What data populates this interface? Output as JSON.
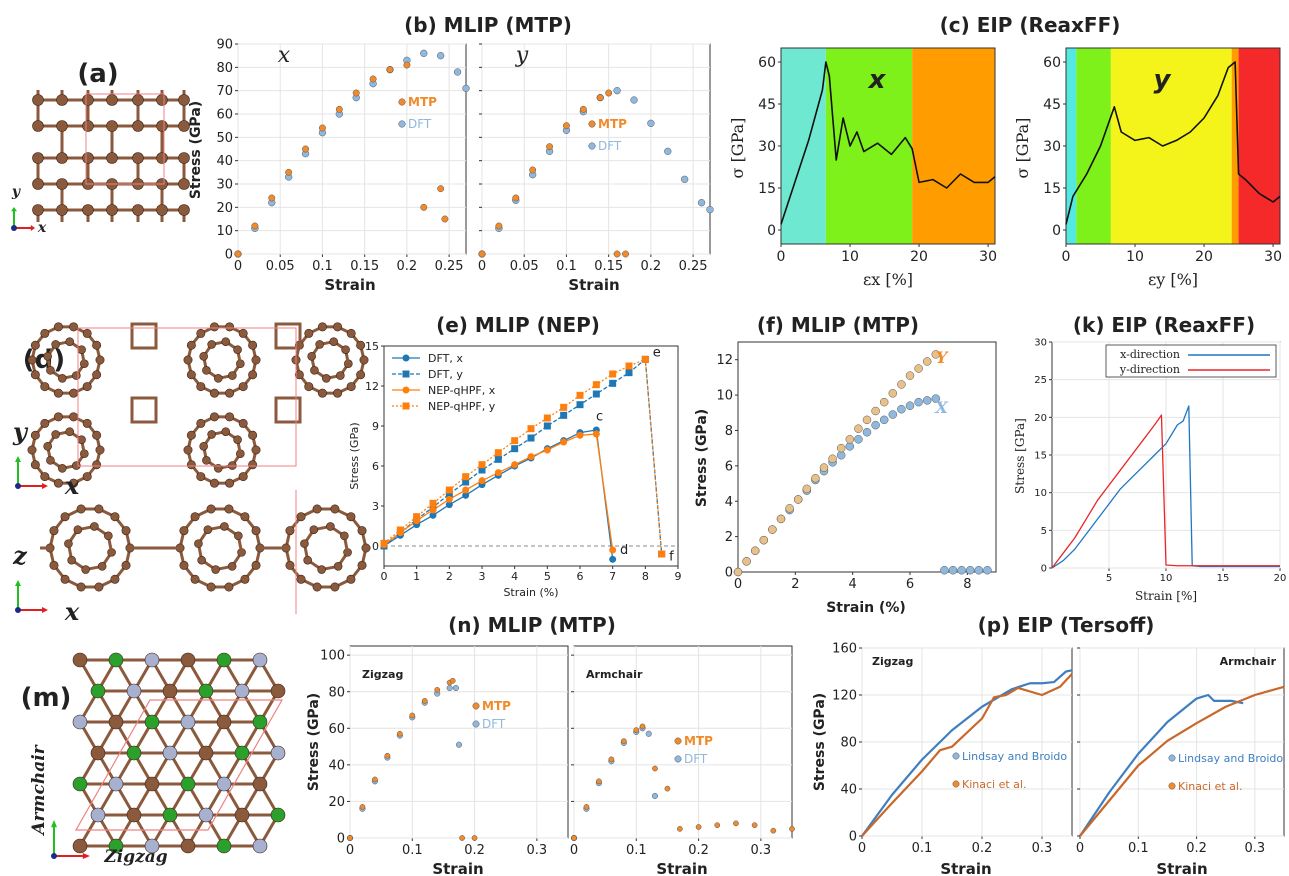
{
  "panels": {
    "a": {
      "label": "(a)",
      "axes": {
        "x": "x",
        "y": "y"
      }
    },
    "b": {
      "label": "(b) MLIP (MTP)",
      "left_title": "x",
      "right_title": "y",
      "ylabel": "Stress (GPa)",
      "xlabel": "Strain",
      "legend": [
        "MTP",
        "DFT"
      ]
    },
    "c": {
      "label": "(c) EIP (ReaxFF)",
      "left_title": "x",
      "right_title": "y",
      "ylabel": "σ [GPa]",
      "xlabel_left": "εx [%]",
      "xlabel_right": "εy [%]"
    },
    "d": {
      "label": "(d)",
      "axes_top": {
        "x": "x",
        "y": "y"
      },
      "axes_bottom": {
        "x": "x",
        "y": "z"
      }
    },
    "e": {
      "label": "(e) MLIP (NEP)",
      "xlabel": "Strain (%)",
      "ylabel": "Stress (GPa)",
      "legend": [
        "DFT, x",
        "DFT, y",
        "NEP-qHPF, x",
        "NEP-qHPF, y"
      ],
      "point_labels": [
        "c",
        "d",
        "e",
        "f"
      ]
    },
    "f": {
      "label": "(f) MLIP (MTP)",
      "xlabel": "Strain (%)",
      "ylabel": "Stress (GPa)",
      "series_labels": [
        "Y",
        "X"
      ]
    },
    "k": {
      "label": "(k) EIP (ReaxFF)",
      "xlabel": "Strain [%]",
      "ylabel": "Stress [GPa]",
      "legend": [
        "x-direction",
        "y-direction"
      ]
    },
    "m": {
      "label": "(m)",
      "axes": {
        "x": "Zigzag",
        "y": "Armchair"
      }
    },
    "n": {
      "label": "(n) MLIP (MTP)",
      "left_title": "Zigzag",
      "right_title": "Armchair",
      "ylabel": "Stress (GPa)",
      "xlabel": "Strain",
      "legend": [
        "MTP",
        "DFT"
      ]
    },
    "p": {
      "label": "(p) EIP (Tersoff)",
      "left_title": "Zigzag",
      "right_title": "Armchair",
      "ylabel": "Stress (GPa)",
      "xlabel": "Strain",
      "legend": [
        "Lindsay and Broido",
        "Kinaci et al."
      ]
    }
  },
  "colors": {
    "mtp": "#f08a2a",
    "dft": "#8fb8df",
    "nep_blue": "#1f77b4",
    "nep_orange": "#ff7f0e",
    "reax_blue": "#1f77c4",
    "reax_red": "#e8262a",
    "atom_c": "#8b5a3c",
    "atom_b": "#2ca02c",
    "atom_n": "#a8b0d0",
    "cell": "#f08080"
  },
  "chart_data": [
    {
      "id": "b-x",
      "type": "scatter",
      "xlim": [
        0,
        0.27
      ],
      "ylim": [
        0,
        90
      ],
      "series": [
        {
          "name": "MTP",
          "x": [
            0,
            0.02,
            0.04,
            0.06,
            0.08,
            0.1,
            0.12,
            0.14,
            0.16,
            0.18,
            0.2,
            0.22,
            0.24,
            0.245
          ],
          "y": [
            0,
            12,
            24,
            35,
            45,
            54,
            62,
            69,
            75,
            79,
            81,
            20,
            28,
            15
          ]
        },
        {
          "name": "DFT",
          "x": [
            0,
            0.02,
            0.04,
            0.06,
            0.08,
            0.1,
            0.12,
            0.14,
            0.16,
            0.18,
            0.2,
            0.22,
            0.24,
            0.26,
            0.27
          ],
          "y": [
            0,
            11,
            22,
            33,
            43,
            52,
            60,
            67,
            73,
            79,
            83,
            86,
            85,
            78,
            71
          ]
        }
      ]
    },
    {
      "id": "b-y",
      "type": "scatter",
      "xlim": [
        0,
        0.27
      ],
      "ylim": [
        0,
        90
      ],
      "series": [
        {
          "name": "MTP",
          "x": [
            0,
            0.02,
            0.04,
            0.06,
            0.08,
            0.1,
            0.12,
            0.14,
            0.15,
            0.16,
            0.17
          ],
          "y": [
            0,
            12,
            24,
            36,
            46,
            55,
            62,
            67,
            69,
            0,
            0
          ]
        },
        {
          "name": "DFT",
          "x": [
            0,
            0.02,
            0.04,
            0.06,
            0.08,
            0.1,
            0.12,
            0.14,
            0.16,
            0.18,
            0.2,
            0.22,
            0.24,
            0.26,
            0.27
          ],
          "y": [
            0,
            11,
            23,
            34,
            44,
            53,
            61,
            67,
            70,
            66,
            56,
            44,
            32,
            22,
            19
          ]
        }
      ]
    },
    {
      "id": "c-x",
      "type": "line",
      "xlim": [
        0,
        31
      ],
      "ylim": [
        -5,
        65
      ],
      "xticks": [
        0,
        10,
        20,
        30
      ],
      "yticks": [
        0,
        15,
        30,
        45,
        60
      ],
      "series": [
        {
          "name": "",
          "x": [
            0,
            2,
            4,
            6,
            6.5,
            7,
            8,
            9,
            10,
            11,
            12,
            14,
            16,
            18,
            19,
            20,
            22,
            24,
            26,
            28,
            30,
            31
          ],
          "y": [
            2,
            17,
            32,
            50,
            60,
            55,
            25,
            40,
            30,
            35,
            28,
            31,
            27,
            33,
            29,
            17,
            18,
            15,
            20,
            17,
            17,
            19
          ]
        }
      ],
      "regions": [
        {
          "from": 0,
          "to": 6.5,
          "color": "#6ee8d0"
        },
        {
          "from": 6.5,
          "to": 19,
          "color": "#7ef01a"
        },
        {
          "from": 19,
          "to": 31,
          "color": "#ff9c00"
        }
      ]
    },
    {
      "id": "c-y",
      "type": "line",
      "xlim": [
        0,
        31
      ],
      "ylim": [
        -5,
        65
      ],
      "xticks": [
        0,
        10,
        20,
        30
      ],
      "yticks": [
        0,
        15,
        30,
        45,
        60
      ],
      "series": [
        {
          "name": "",
          "x": [
            0,
            1,
            3,
            5,
            7,
            8,
            10,
            12,
            14,
            16,
            18,
            20,
            22,
            23.5,
            24.5,
            25,
            26,
            28,
            30,
            31
          ],
          "y": [
            2,
            12,
            20,
            30,
            44,
            35,
            32,
            33,
            30,
            32,
            35,
            40,
            48,
            58,
            60,
            20,
            18,
            13,
            10,
            12
          ]
        }
      ],
      "regions": [
        {
          "from": 0,
          "to": 1.5,
          "color": "#55e8e0"
        },
        {
          "from": 1.5,
          "to": 6.5,
          "color": "#7ef01a"
        },
        {
          "from": 6.5,
          "to": 24,
          "color": "#f4f41a"
        },
        {
          "from": 24,
          "to": 25,
          "color": "#ff9c00"
        },
        {
          "from": 25,
          "to": 31,
          "color": "#f5282a"
        }
      ]
    },
    {
      "id": "e",
      "type": "line",
      "xlim": [
        0,
        9
      ],
      "ylim": [
        -1.5,
        15
      ],
      "xticks": [
        0,
        1,
        2,
        3,
        4,
        5,
        6,
        7,
        8,
        9
      ],
      "yticks": [
        0,
        3,
        6,
        9,
        12,
        15
      ],
      "series": [
        {
          "name": "DFT, x",
          "x": [
            0,
            0.5,
            1,
            1.5,
            2,
            2.5,
            3,
            3.5,
            4,
            4.5,
            5,
            5.5,
            6,
            6.5,
            7
          ],
          "y": [
            0,
            0.8,
            1.6,
            2.3,
            3.1,
            3.8,
            4.6,
            5.3,
            6.0,
            6.6,
            7.3,
            7.9,
            8.5,
            8.7,
            -1.0
          ]
        },
        {
          "name": "DFT, y",
          "x": [
            0,
            0.5,
            1,
            1.5,
            2,
            2.5,
            3,
            3.5,
            4,
            4.5,
            5,
            5.5,
            6,
            6.5,
            7,
            7.5,
            8,
            8.5
          ],
          "y": [
            0,
            1.0,
            2.0,
            2.9,
            3.9,
            4.8,
            5.7,
            6.5,
            7.3,
            8.1,
            9.0,
            9.8,
            10.6,
            11.4,
            12.2,
            13.0,
            14.0,
            -0.6
          ]
        },
        {
          "name": "NEP-qHPF, x",
          "x": [
            0,
            0.5,
            1,
            1.5,
            2,
            2.5,
            3,
            3.5,
            4,
            4.5,
            5,
            5.5,
            6,
            6.5,
            7
          ],
          "y": [
            0.1,
            1.0,
            1.9,
            2.7,
            3.5,
            4.2,
            4.9,
            5.5,
            6.1,
            6.7,
            7.2,
            7.8,
            8.3,
            8.4,
            -0.3
          ]
        },
        {
          "name": "NEP-qHPF, y",
          "x": [
            0,
            0.5,
            1,
            1.5,
            2,
            2.5,
            3,
            3.5,
            4,
            4.5,
            5,
            5.5,
            6,
            6.5,
            7,
            7.5,
            8,
            8.5
          ],
          "y": [
            0.2,
            1.2,
            2.2,
            3.2,
            4.2,
            5.2,
            6.1,
            7.0,
            7.9,
            8.8,
            9.6,
            10.4,
            11.3,
            12.1,
            12.9,
            13.5,
            14.0,
            -0.6
          ]
        }
      ]
    },
    {
      "id": "f",
      "type": "scatter",
      "xlim": [
        0,
        9
      ],
      "ylim": [
        0,
        13
      ],
      "xticks": [
        0,
        2,
        4,
        6,
        8
      ],
      "yticks": [
        0,
        2,
        4,
        6,
        8,
        10,
        12
      ],
      "series": [
        {
          "name": "Y",
          "x": [
            0,
            0.3,
            0.6,
            0.9,
            1.2,
            1.5,
            1.8,
            2.1,
            2.4,
            2.7,
            3.0,
            3.3,
            3.6,
            3.9,
            4.2,
            4.5,
            4.8,
            5.1,
            5.4,
            5.7,
            6.0,
            6.3,
            6.6,
            6.9
          ],
          "y": [
            0,
            0.6,
            1.2,
            1.8,
            2.4,
            3.0,
            3.6,
            4.1,
            4.7,
            5.3,
            5.9,
            6.4,
            7.0,
            7.5,
            8.1,
            8.6,
            9.1,
            9.6,
            10.1,
            10.6,
            11.1,
            11.5,
            11.9,
            12.3
          ]
        },
        {
          "name": "X",
          "x": [
            0,
            0.3,
            0.6,
            0.9,
            1.2,
            1.5,
            1.8,
            2.1,
            2.4,
            2.7,
            3.0,
            3.3,
            3.6,
            3.9,
            4.2,
            4.5,
            4.8,
            5.1,
            5.4,
            5.7,
            6.0,
            6.3,
            6.6,
            6.9,
            7.2,
            7.5,
            7.8,
            8.1,
            8.4,
            8.7
          ],
          "y": [
            0,
            0.6,
            1.2,
            1.8,
            2.4,
            3.0,
            3.5,
            4.1,
            4.6,
            5.2,
            5.7,
            6.2,
            6.6,
            7.1,
            7.5,
            7.9,
            8.3,
            8.6,
            8.9,
            9.2,
            9.4,
            9.6,
            9.7,
            9.8,
            0.1,
            0.1,
            0.1,
            0.1,
            0.1,
            0.1
          ]
        }
      ]
    },
    {
      "id": "k",
      "type": "line",
      "xlim": [
        0,
        20
      ],
      "ylim": [
        0,
        30
      ],
      "xticks": [
        5,
        10,
        15,
        20
      ],
      "yticks": [
        0,
        5,
        10,
        15,
        20,
        25,
        30
      ],
      "series": [
        {
          "name": "x-direction",
          "x": [
            0,
            1,
            2,
            3,
            4,
            5,
            6,
            7,
            8,
            9,
            10,
            11,
            11.5,
            12,
            12.3,
            13,
            20
          ],
          "y": [
            0,
            1,
            2.5,
            4.5,
            6.5,
            8.5,
            10.5,
            12,
            13.5,
            15,
            16.5,
            19,
            19.5,
            21.5,
            0.3,
            0.2,
            0.2
          ]
        },
        {
          "name": "y-direction",
          "x": [
            0,
            1,
            2,
            3,
            4,
            5,
            6,
            7,
            8,
            9,
            9.6,
            10,
            11,
            20
          ],
          "y": [
            0,
            2,
            4,
            6.5,
            9,
            11,
            13,
            15,
            17,
            19,
            20.3,
            0.4,
            0.3,
            0.3
          ]
        }
      ]
    },
    {
      "id": "n-zigzag",
      "type": "scatter",
      "xlim": [
        0,
        0.35
      ],
      "ylim": [
        0,
        105
      ],
      "xticks": [
        0,
        0.1,
        0.2,
        0.3
      ],
      "yticks": [
        0,
        20,
        40,
        60,
        80,
        100
      ],
      "series": [
        {
          "name": "MTP",
          "x": [
            0,
            0.02,
            0.04,
            0.06,
            0.08,
            0.1,
            0.12,
            0.14,
            0.16,
            0.165,
            0.18,
            0.2
          ],
          "y": [
            0,
            17,
            32,
            45,
            57,
            67,
            75,
            81,
            85,
            86,
            0,
            0
          ]
        },
        {
          "name": "DFT",
          "x": [
            0,
            0.02,
            0.04,
            0.06,
            0.08,
            0.1,
            0.12,
            0.14,
            0.16,
            0.17,
            0.175
          ],
          "y": [
            0,
            16,
            31,
            44,
            56,
            66,
            74,
            79,
            82,
            82,
            51
          ]
        }
      ]
    },
    {
      "id": "n-armchair",
      "type": "scatter",
      "xlim": [
        0,
        0.35
      ],
      "ylim": [
        0,
        105
      ],
      "xticks": [
        0,
        0.1,
        0.2,
        0.3
      ],
      "series": [
        {
          "name": "MTP",
          "x": [
            0,
            0.02,
            0.04,
            0.06,
            0.08,
            0.1,
            0.11,
            0.13,
            0.15,
            0.17,
            0.2,
            0.23,
            0.26,
            0.29,
            0.32,
            0.35
          ],
          "y": [
            0,
            17,
            31,
            43,
            53,
            59,
            61,
            38,
            27,
            5,
            6,
            7,
            8,
            7,
            4,
            5
          ]
        },
        {
          "name": "DFT",
          "x": [
            0,
            0.02,
            0.04,
            0.06,
            0.08,
            0.1,
            0.11,
            0.12,
            0.13
          ],
          "y": [
            0,
            16,
            30,
            42,
            52,
            58,
            60,
            57,
            23
          ]
        }
      ]
    },
    {
      "id": "p-zigzag",
      "type": "line",
      "xlim": [
        0,
        0.35
      ],
      "ylim": [
        0,
        160
      ],
      "xticks": [
        0,
        0.1,
        0.2,
        0.3
      ],
      "yticks": [
        0,
        40,
        80,
        120,
        160
      ],
      "series": [
        {
          "name": "Lindsay and Broido",
          "x": [
            0,
            0.05,
            0.1,
            0.15,
            0.2,
            0.25,
            0.28,
            0.3,
            0.32,
            0.34,
            0.35
          ],
          "y": [
            0,
            35,
            65,
            90,
            110,
            125,
            130,
            130,
            131,
            140,
            141
          ]
        },
        {
          "name": "Kinaci et al.",
          "x": [
            0,
            0.05,
            0.1,
            0.13,
            0.15,
            0.2,
            0.22,
            0.24,
            0.26,
            0.3,
            0.33,
            0.35
          ],
          "y": [
            0,
            28,
            55,
            73,
            76,
            100,
            118,
            120,
            126,
            120,
            127,
            138
          ]
        }
      ]
    },
    {
      "id": "p-armchair",
      "type": "line",
      "xlim": [
        0,
        0.35
      ],
      "ylim": [
        0,
        160
      ],
      "xticks": [
        0,
        0.1,
        0.2,
        0.3
      ],
      "series": [
        {
          "name": "Lindsay and Broido",
          "x": [
            0,
            0.05,
            0.1,
            0.15,
            0.2,
            0.22,
            0.23,
            0.26,
            0.28
          ],
          "y": [
            0,
            37,
            70,
            97,
            117,
            120,
            115,
            115,
            113
          ]
        },
        {
          "name": "Kinaci et al.",
          "x": [
            0,
            0.05,
            0.1,
            0.15,
            0.2,
            0.25,
            0.3,
            0.35
          ],
          "y": [
            0,
            30,
            60,
            81,
            96,
            110,
            120,
            127
          ]
        }
      ]
    }
  ]
}
